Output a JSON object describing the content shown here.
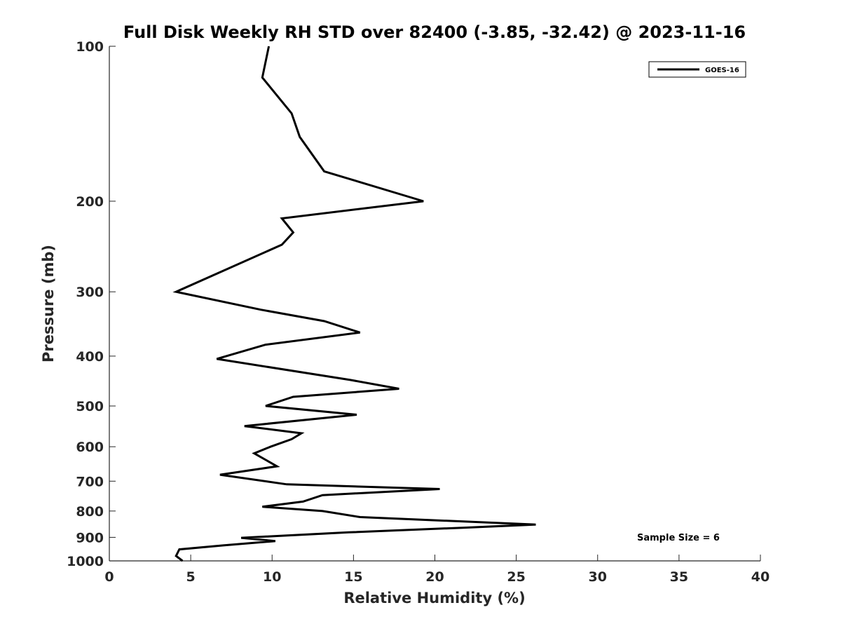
{
  "chart_data": {
    "type": "line",
    "title": "Full Disk Weekly RH STD over 82400 (-3.85, -32.42) @ 2023-11-16",
    "xlabel": "Relative Humidity (%)",
    "ylabel": "Pressure (mb)",
    "xlim": [
      0,
      40
    ],
    "ylim": [
      100,
      1000
    ],
    "y_scale": "log",
    "y_reversed": true,
    "x_ticks": [
      0,
      5,
      10,
      15,
      20,
      25,
      30,
      35,
      40
    ],
    "y_ticks": [
      100,
      200,
      300,
      400,
      500,
      600,
      700,
      800,
      900,
      1000
    ],
    "grid": false,
    "legend_position": "top-right",
    "annotation": "Sample Size = 6",
    "series": [
      {
        "name": "GOES-16",
        "color": "#000000",
        "points": [
          [
            9.8,
            100
          ],
          [
            9.4,
            115
          ],
          [
            11.2,
            135
          ],
          [
            11.7,
            150
          ],
          [
            13.2,
            175
          ],
          [
            19.3,
            200
          ],
          [
            10.6,
            216
          ],
          [
            11.3,
            230
          ],
          [
            10.6,
            243
          ],
          [
            4.1,
            300
          ],
          [
            9.3,
            325
          ],
          [
            13.2,
            342
          ],
          [
            15.4,
            360
          ],
          [
            9.6,
            380
          ],
          [
            6.6,
            405
          ],
          [
            14.8,
            445
          ],
          [
            17.8,
            463
          ],
          [
            11.3,
            480
          ],
          [
            9.6,
            500
          ],
          [
            15.2,
            520
          ],
          [
            8.3,
            547
          ],
          [
            11.8,
            565
          ],
          [
            11.2,
            580
          ],
          [
            9.9,
            600
          ],
          [
            8.9,
            618
          ],
          [
            10.3,
            655
          ],
          [
            6.8,
            680
          ],
          [
            10.9,
            710
          ],
          [
            20.3,
            725
          ],
          [
            13.1,
            745
          ],
          [
            11.9,
            767
          ],
          [
            9.4,
            785
          ],
          [
            13.1,
            800
          ],
          [
            15.4,
            822
          ],
          [
            26.2,
            850
          ],
          [
            21.7,
            862
          ],
          [
            14.7,
            880
          ],
          [
            8.1,
            902
          ],
          [
            10.2,
            915
          ],
          [
            7.0,
            933
          ],
          [
            4.3,
            950
          ],
          [
            4.1,
            978
          ],
          [
            4.5,
            1000
          ]
        ]
      }
    ]
  }
}
